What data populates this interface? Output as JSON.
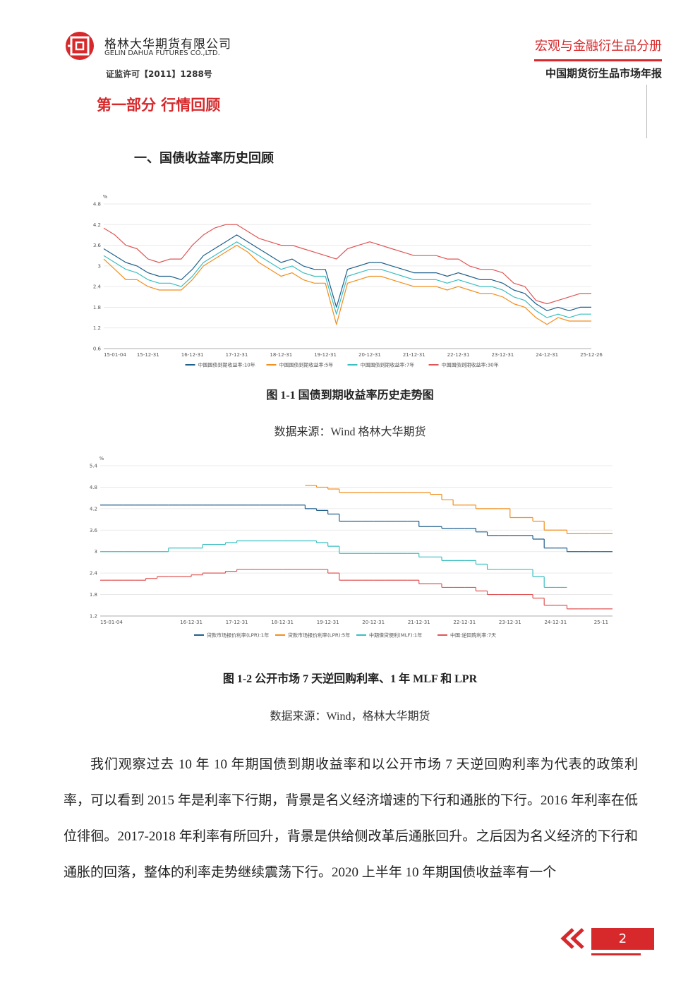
{
  "header": {
    "company": "格林大华期货有限公司",
    "company_en": "GELIN DAHUA FUTURES CO.,LTD.",
    "license": "证监许可【2011】1288号",
    "volume": "宏观与金融衍生品分册",
    "report": "中国期货衍生品市场年报"
  },
  "section": {
    "title": "第一部分  行情回顾",
    "subtitle": "一、国债收益率历史回顾"
  },
  "chart_data": [
    {
      "type": "line",
      "title": "图 1-1  国债到期收益率历史走势图",
      "source": "数据来源：Wind  格林大华期货",
      "y_unit": "%",
      "categories": [
        "15-01-04",
        null,
        null,
        null,
        "15-12-31",
        null,
        null,
        null,
        "16-12-31",
        null,
        null,
        null,
        "17-12-31",
        null,
        null,
        null,
        "18-12-31",
        null,
        null,
        null,
        "19-12-31",
        null,
        null,
        null,
        "20-12-31",
        null,
        null,
        null,
        "21-12-31",
        null,
        null,
        null,
        "22-12-31",
        null,
        null,
        null,
        "23-12-31",
        null,
        null,
        null,
        "24-12-31",
        null,
        null,
        null,
        "25-12-26"
      ],
      "series": [
        {
          "name": "中国国债到期收益率:10年",
          "color": "#1f5f8b",
          "values": [
            3.5,
            3.3,
            3.1,
            3.0,
            2.8,
            2.7,
            2.7,
            2.6,
            2.9,
            3.3,
            3.5,
            3.7,
            3.9,
            3.7,
            3.5,
            3.3,
            3.1,
            3.2,
            3.0,
            2.9,
            2.9,
            1.8,
            2.9,
            3.0,
            3.1,
            3.1,
            3.0,
            2.9,
            2.8,
            2.8,
            2.8,
            2.7,
            2.8,
            2.7,
            2.6,
            2.6,
            2.5,
            2.3,
            2.2,
            1.9,
            1.7,
            1.8,
            1.7,
            1.8,
            1.8
          ]
        },
        {
          "name": "中国国债到期收益率:5年",
          "color": "#f28e1c",
          "values": [
            3.2,
            2.9,
            2.6,
            2.6,
            2.4,
            2.3,
            2.3,
            2.3,
            2.6,
            3.0,
            3.2,
            3.4,
            3.6,
            3.4,
            3.1,
            2.9,
            2.7,
            2.8,
            2.6,
            2.5,
            2.5,
            1.3,
            2.5,
            2.6,
            2.7,
            2.7,
            2.6,
            2.5,
            2.4,
            2.4,
            2.4,
            2.3,
            2.4,
            2.3,
            2.2,
            2.2,
            2.1,
            1.9,
            1.8,
            1.5,
            1.3,
            1.5,
            1.4,
            1.4,
            1.4
          ]
        },
        {
          "name": "中国国债到期收益率:7年",
          "color": "#3bbfc0",
          "values": [
            3.3,
            3.1,
            2.9,
            2.8,
            2.6,
            2.5,
            2.5,
            2.4,
            2.7,
            3.1,
            3.3,
            3.5,
            3.7,
            3.5,
            3.3,
            3.1,
            2.9,
            3.0,
            2.8,
            2.7,
            2.7,
            1.6,
            2.7,
            2.8,
            2.9,
            2.9,
            2.8,
            2.7,
            2.6,
            2.6,
            2.6,
            2.5,
            2.6,
            2.5,
            2.4,
            2.4,
            2.3,
            2.1,
            2.0,
            1.7,
            1.5,
            1.6,
            1.5,
            1.6,
            1.6
          ]
        },
        {
          "name": "中国国债到期收益率:30年",
          "color": "#e05555",
          "values": [
            4.1,
            3.9,
            3.6,
            3.5,
            3.2,
            3.1,
            3.2,
            3.2,
            3.6,
            3.9,
            4.1,
            4.2,
            4.2,
            4.0,
            3.8,
            3.7,
            3.6,
            3.6,
            3.5,
            3.4,
            3.3,
            3.2,
            3.5,
            3.6,
            3.7,
            3.6,
            3.5,
            3.4,
            3.3,
            3.3,
            3.3,
            3.2,
            3.2,
            3.0,
            2.9,
            2.9,
            2.8,
            2.5,
            2.4,
            2.0,
            1.9,
            2.0,
            2.1,
            2.2,
            2.2
          ]
        }
      ],
      "ylim": [
        0.6,
        4.8
      ],
      "yticks": [
        0.6,
        1.2,
        1.8,
        2.4,
        3,
        3.6,
        4.2,
        4.8
      ],
      "grid": true,
      "legend": "bottom",
      "step": false
    },
    {
      "type": "line",
      "title": "图 1-2    公开市场 7 天逆回购利率、1 年 MLF 和 LPR",
      "source": "数据来源：Wind，格林大华期货",
      "y_unit": "%",
      "categories": [
        "15-01-04",
        null,
        null,
        null,
        null,
        null,
        null,
        null,
        "16-12-31",
        null,
        null,
        null,
        "17-12-31",
        null,
        null,
        null,
        "18-12-31",
        null,
        null,
        null,
        "19-12-31",
        null,
        null,
        null,
        "20-12-31",
        null,
        null,
        null,
        "21-12-31",
        null,
        null,
        null,
        "22-12-31",
        null,
        null,
        null,
        "23-12-31",
        null,
        null,
        null,
        "24-12-31",
        null,
        null,
        null,
        "25-11"
      ],
      "series": [
        {
          "name": "贷款市场报价利率(LPR):1年",
          "color": "#1f5f8b",
          "values": [
            4.3,
            4.3,
            4.3,
            4.3,
            4.3,
            4.3,
            4.3,
            4.3,
            4.3,
            4.3,
            4.3,
            4.3,
            4.3,
            4.3,
            4.3,
            4.3,
            4.3,
            4.3,
            4.2,
            4.15,
            4.05,
            3.85,
            3.85,
            3.85,
            3.85,
            3.85,
            3.85,
            3.85,
            3.7,
            3.7,
            3.65,
            3.65,
            3.65,
            3.55,
            3.45,
            3.45,
            3.45,
            3.45,
            3.35,
            3.1,
            3.1,
            3.0,
            3.0,
            3.0,
            3.0
          ]
        },
        {
          "name": "贷款市场报价利率(LPR):5年",
          "color": "#f28e1c",
          "values": [
            null,
            null,
            null,
            null,
            null,
            null,
            null,
            null,
            null,
            null,
            null,
            null,
            null,
            null,
            null,
            null,
            null,
            null,
            4.85,
            4.8,
            4.75,
            4.65,
            4.65,
            4.65,
            4.65,
            4.65,
            4.65,
            4.65,
            4.65,
            4.6,
            4.45,
            4.3,
            4.3,
            4.2,
            4.2,
            4.2,
            3.95,
            3.95,
            3.85,
            3.6,
            3.6,
            3.5,
            3.5,
            3.5,
            3.5
          ]
        },
        {
          "name": "中期借贷便利(MLF):1年",
          "color": "#3bbfc0",
          "values": [
            3.0,
            3.0,
            3.0,
            3.0,
            3.0,
            3.0,
            3.1,
            3.1,
            3.1,
            3.2,
            3.2,
            3.25,
            3.3,
            3.3,
            3.3,
            3.3,
            3.3,
            3.3,
            3.3,
            3.25,
            3.15,
            2.95,
            2.95,
            2.95,
            2.95,
            2.95,
            2.95,
            2.95,
            2.85,
            2.85,
            2.75,
            2.75,
            2.75,
            2.65,
            2.5,
            2.5,
            2.5,
            2.5,
            2.3,
            2.0,
            2.0,
            null,
            null,
            null,
            null
          ]
        },
        {
          "name": "中国:逆回购利率:7天",
          "color": "#e05555",
          "values": [
            2.2,
            2.2,
            2.2,
            2.2,
            2.25,
            2.3,
            2.3,
            2.3,
            2.35,
            2.4,
            2.4,
            2.45,
            2.5,
            2.5,
            2.5,
            2.5,
            2.5,
            2.5,
            2.5,
            2.5,
            2.4,
            2.2,
            2.2,
            2.2,
            2.2,
            2.2,
            2.2,
            2.2,
            2.1,
            2.1,
            2.0,
            2.0,
            2.0,
            1.9,
            1.8,
            1.8,
            1.8,
            1.8,
            1.7,
            1.5,
            1.5,
            1.4,
            1.4,
            1.4,
            1.4
          ]
        }
      ],
      "ylim": [
        1.2,
        5.4
      ],
      "yticks": [
        1.2,
        1.8,
        2.4,
        3,
        3.6,
        4.2,
        4.8,
        5.4
      ],
      "grid": true,
      "legend": "bottom",
      "step": true
    }
  ],
  "body": {
    "paragraph": "我们观察过去 10 年 10 年期国债到期收益率和以公开市场 7 天逆回购利率为代表的政策利率，可以看到 2015 年是利率下行期，背景是名义经济增速的下行和通胀的下行。2016 年利率在低位徘徊。2017-2018 年利率有所回升，背景是供给侧改革后通胀回升。之后因为名义经济的下行和通胀的回落，整体的利率走势继续震荡下行。2020 上半年 10 年期国债收益率有一个"
  },
  "footer": {
    "page": "2"
  }
}
